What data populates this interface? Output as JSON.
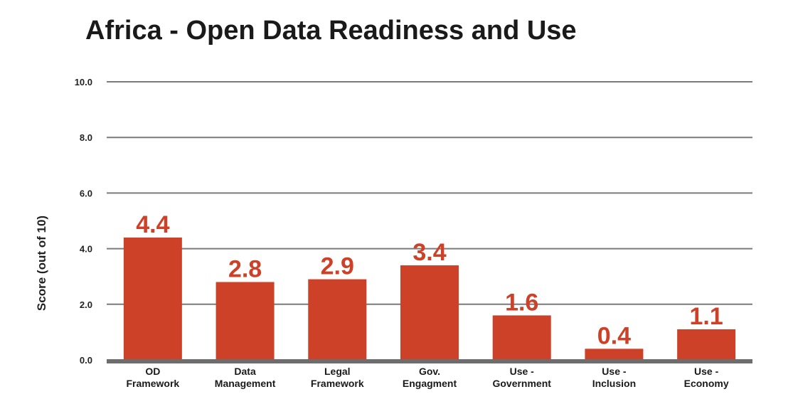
{
  "chart_data": {
    "type": "bar",
    "title": "Africa - Open Data Readiness and Use",
    "ylabel": "Score (out of 10)",
    "xlabel": "",
    "ylim": [
      0,
      10
    ],
    "yticks": [
      "0.0",
      "2.0",
      "4.0",
      "6.0",
      "8.0",
      "10.0"
    ],
    "grid": true,
    "categories": [
      [
        "OD",
        "Framework"
      ],
      [
        "Data",
        "Management"
      ],
      [
        "Legal",
        "Framework"
      ],
      [
        "Gov.",
        "Engagment"
      ],
      [
        "Use -",
        "Government"
      ],
      [
        "Use -",
        "Inclusion"
      ],
      [
        "Use -",
        "Economy"
      ]
    ],
    "values": [
      4.4,
      2.8,
      2.9,
      3.4,
      1.6,
      0.4,
      1.1
    ],
    "labels": [
      "4.4",
      "2.8",
      "2.9",
      "3.4",
      "1.6",
      "0.4",
      "1.1"
    ],
    "colors": {
      "bar": "#cc4127",
      "label": "#cc4127",
      "grid": "#7a7a7a",
      "axis": "#6d6d6d"
    }
  }
}
